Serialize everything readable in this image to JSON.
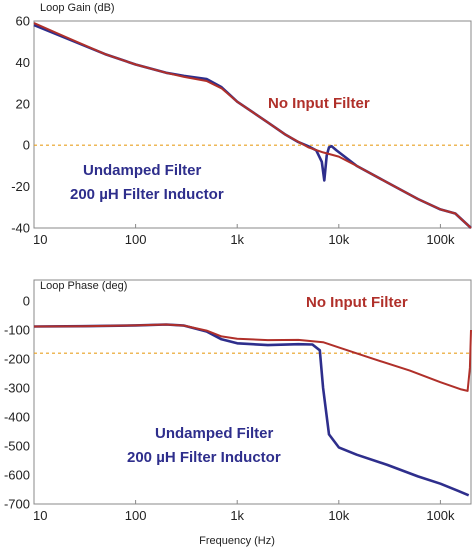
{
  "chart_data": [
    {
      "type": "line",
      "title": "Loop Gain (dB)",
      "xlabel": "",
      "ylabel": "",
      "x_scale": "log",
      "xlim": [
        10,
        200000
      ],
      "ylim": [
        -40,
        60
      ],
      "x_ticks": [
        10,
        100,
        1000,
        10000,
        100000
      ],
      "x_tick_labels": [
        "10",
        "100",
        "1k",
        "10k",
        "100k"
      ],
      "y_ticks": [
        60,
        40,
        20,
        0,
        -20,
        -40
      ],
      "y_tick_labels": [
        "60",
        "40",
        "20",
        "0",
        "-20",
        "-40"
      ],
      "reference_line": {
        "y": 0,
        "color": "#e8a020",
        "style": "dashed"
      },
      "grid": false,
      "series": [
        {
          "color": "#2e2e8c",
          "points": [
            [
              10,
              58
            ],
            [
              20,
              52
            ],
            [
              50,
              44
            ],
            [
              100,
              39
            ],
            [
              200,
              35
            ],
            [
              300,
              33.5
            ],
            [
              500,
              32
            ],
            [
              700,
              28
            ],
            [
              1000,
              21
            ],
            [
              2000,
              11
            ],
            [
              3000,
              5
            ],
            [
              4000,
              1.5
            ],
            [
              5000,
              -0.5
            ],
            [
              6000,
              -2.5
            ],
            [
              6800,
              -8
            ],
            [
              7200,
              -17
            ],
            [
              7600,
              -5
            ],
            [
              8000,
              -1
            ],
            [
              8500,
              -0.5
            ],
            [
              9500,
              -2.5
            ],
            [
              15000,
              -10
            ],
            [
              30000,
              -18
            ],
            [
              60000,
              -26
            ],
            [
              100000,
              -31
            ],
            [
              140000,
              -33
            ],
            [
              200000,
              -40
            ]
          ]
        },
        {
          "color": "#b0302a",
          "points": [
            [
              10,
              59
            ],
            [
              20,
              52.5
            ],
            [
              50,
              44
            ],
            [
              100,
              39
            ],
            [
              200,
              35
            ],
            [
              300,
              33
            ],
            [
              500,
              31
            ],
            [
              700,
              27.5
            ],
            [
              1000,
              21
            ],
            [
              2000,
              11
            ],
            [
              3000,
              5
            ],
            [
              5000,
              -1
            ],
            [
              7000,
              -3.5
            ],
            [
              10000,
              -5.5
            ],
            [
              15000,
              -10
            ],
            [
              30000,
              -18
            ],
            [
              60000,
              -26
            ],
            [
              100000,
              -31
            ],
            [
              140000,
              -33
            ],
            [
              200000,
              -40
            ]
          ]
        }
      ],
      "annotations": [
        {
          "text": "No Input Filter",
          "color": "#b0302a"
        },
        {
          "text": "Undamped Filter",
          "color": "#2e2e8c"
        },
        {
          "text": "200 µH Filter Inductor",
          "color": "#2e2e8c"
        }
      ]
    },
    {
      "type": "line",
      "title": "Loop Phase (deg)",
      "xlabel": "Frequency (Hz)",
      "ylabel": "",
      "x_scale": "log",
      "xlim": [
        10,
        200000
      ],
      "ylim": [
        -700,
        0
      ],
      "x_ticks": [
        10,
        100,
        1000,
        10000,
        100000
      ],
      "x_tick_labels": [
        "10",
        "100",
        "1k",
        "10k",
        "100k"
      ],
      "y_ticks": [
        0,
        -100,
        -200,
        -300,
        -400,
        -500,
        -600,
        -700
      ],
      "y_tick_labels": [
        "0",
        "-100",
        "-200",
        "-300",
        "-400",
        "-500",
        "-600",
        "-700"
      ],
      "reference_line": {
        "y": -180,
        "color": "#e8a020",
        "style": "dashed"
      },
      "grid": false,
      "series": [
        {
          "color": "#2e2e8c",
          "points": [
            [
              10,
              -88
            ],
            [
              30,
              -87
            ],
            [
              100,
              -84
            ],
            [
              200,
              -81
            ],
            [
              300,
              -85
            ],
            [
              500,
              -105
            ],
            [
              700,
              -132
            ],
            [
              1000,
              -146
            ],
            [
              2000,
              -152
            ],
            [
              4000,
              -149
            ],
            [
              5500,
              -150
            ],
            [
              6500,
              -170
            ],
            [
              7000,
              -300
            ],
            [
              8000,
              -460
            ],
            [
              10000,
              -505
            ],
            [
              15000,
              -530
            ],
            [
              30000,
              -565
            ],
            [
              60000,
              -605
            ],
            [
              100000,
              -630
            ],
            [
              150000,
              -655
            ],
            [
              190000,
              -670
            ]
          ]
        },
        {
          "color": "#b0302a",
          "points": [
            [
              10,
              -88
            ],
            [
              30,
              -87
            ],
            [
              100,
              -84
            ],
            [
              200,
              -81
            ],
            [
              300,
              -85
            ],
            [
              500,
              -102
            ],
            [
              700,
              -122
            ],
            [
              1000,
              -130
            ],
            [
              2000,
              -135
            ],
            [
              4000,
              -134
            ],
            [
              7000,
              -142
            ],
            [
              10000,
              -160
            ],
            [
              20000,
              -195
            ],
            [
              50000,
              -240
            ],
            [
              100000,
              -280
            ],
            [
              160000,
              -305
            ],
            [
              185000,
              -310
            ],
            [
              195000,
              -230
            ],
            [
              200000,
              -100
            ]
          ]
        }
      ],
      "annotations": [
        {
          "text": "No Input Filter",
          "color": "#b0302a"
        },
        {
          "text": "Undamped Filter",
          "color": "#2e2e8c"
        },
        {
          "text": "200 µH Filter Inductor",
          "color": "#2e2e8c"
        }
      ]
    }
  ]
}
